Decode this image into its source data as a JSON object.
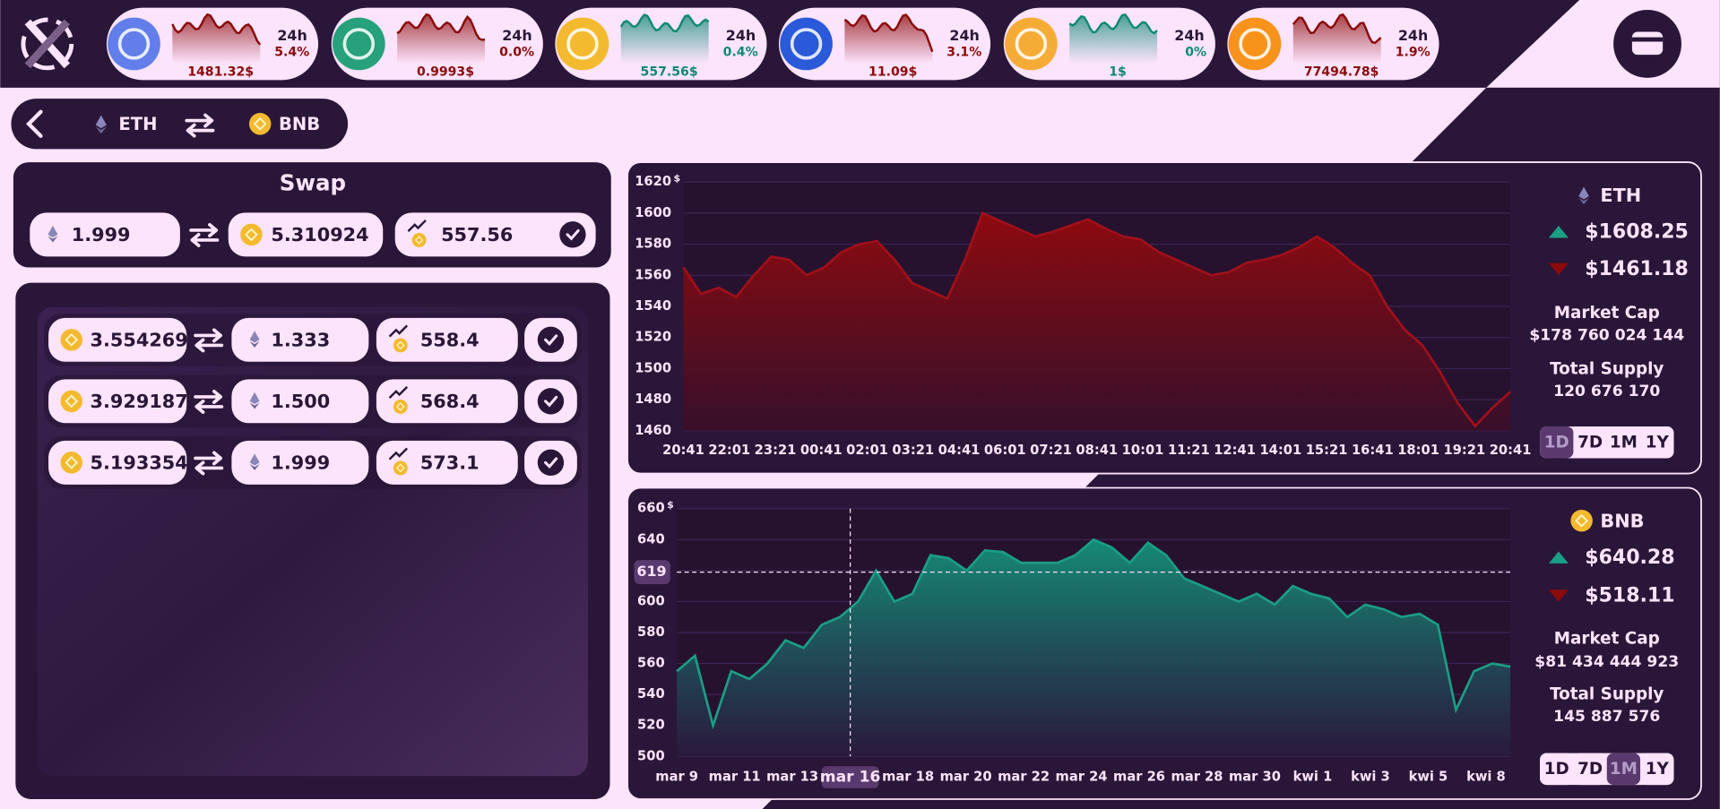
{
  "header": {
    "tickers": [
      {
        "period": "24h",
        "change": "5.4%",
        "price": "1481.32$",
        "color": "#8b0a0a",
        "icon_color": "#627eea"
      },
      {
        "period": "24h",
        "change": "0.0%",
        "price": "0.9993$",
        "color": "#8b0a0a",
        "icon_color": "#26a17b"
      },
      {
        "period": "24h",
        "change": "0.4%",
        "price": "557.56$",
        "color": "#0e8a72",
        "icon_color": "#f3ba2f"
      },
      {
        "period": "24h",
        "change": "3.1%",
        "price": "11.09$",
        "color": "#8b0a0a",
        "icon_color": "#2a5ada"
      },
      {
        "period": "24h",
        "change": "0%",
        "price": "1$",
        "color": "#0e8a72",
        "icon_color": "#f5ac37"
      },
      {
        "period": "24h",
        "change": "1.9%",
        "price": "77494.78$",
        "color": "#8b0a0a",
        "icon_color": "#f7931a"
      }
    ]
  },
  "pair_bar": {
    "from": "ETH",
    "to": "BNB"
  },
  "swap": {
    "title": "Swap",
    "from_amount": "1.999",
    "to_amount": "5.310924",
    "rate": "557.56"
  },
  "history": {
    "rows": [
      [
        "3.554269",
        "1.333",
        "558.4"
      ],
      [
        "3.929187",
        "1.500",
        "568.4"
      ],
      [
        "5.193354",
        "1.999",
        "573.1"
      ]
    ]
  },
  "charts": [
    {
      "type": "area",
      "coin": "ETH",
      "unit": "$",
      "color": "#a0101a",
      "ylim": [
        1460,
        1620
      ],
      "yticks": [
        1460,
        1480,
        1500,
        1520,
        1540,
        1560,
        1580,
        1600,
        1620
      ],
      "xlabels": [
        "20:41",
        "22:01",
        "23:21",
        "00:41",
        "02:01",
        "03:21",
        "04:41",
        "06:01",
        "07:21",
        "08:41",
        "10:01",
        "11:21",
        "12:41",
        "14:01",
        "15:21",
        "16:41",
        "18:01",
        "19:21",
        "20:41"
      ],
      "values": [
        1565,
        1548,
        1552,
        1546,
        1560,
        1572,
        1570,
        1560,
        1565,
        1575,
        1580,
        1582,
        1570,
        1555,
        1550,
        1545,
        1570,
        1600,
        1595,
        1590,
        1585,
        1588,
        1592,
        1596,
        1590,
        1585,
        1583,
        1575,
        1570,
        1565,
        1560,
        1562,
        1568,
        1570,
        1573,
        1578,
        1585,
        1578,
        1568,
        1560,
        1540,
        1525,
        1515,
        1498,
        1478,
        1463,
        1475,
        1485
      ],
      "high": "$1608.25",
      "low": "$1461.18",
      "market_cap_label": "Market Cap",
      "market_cap": "$178 760 024 144",
      "supply_label": "Total Supply",
      "supply": "120 676 170",
      "ranges": [
        "1D",
        "7D",
        "1M",
        "1Y"
      ],
      "selected_range": 0
    },
    {
      "type": "area",
      "coin": "BNB",
      "unit": "$",
      "color": "#1a9e86",
      "ylim": [
        500,
        660
      ],
      "yticks": [
        500,
        520,
        540,
        560,
        580,
        600,
        620,
        640,
        660
      ],
      "xlabels": [
        "mar 9",
        "mar 11",
        "mar 13",
        "mar 16",
        "mar 18",
        "mar 20",
        "mar 22",
        "mar 24",
        "mar 26",
        "mar 28",
        "mar 30",
        "kwi 1",
        "kwi 3",
        "kwi 5",
        "kwi 8"
      ],
      "values": [
        555,
        565,
        520,
        555,
        550,
        560,
        575,
        570,
        585,
        590,
        600,
        620,
        600,
        605,
        630,
        628,
        620,
        633,
        632,
        625,
        625,
        625,
        630,
        640,
        635,
        625,
        638,
        630,
        615,
        610,
        605,
        600,
        605,
        598,
        610,
        605,
        602,
        590,
        598,
        595,
        590,
        592,
        585,
        530,
        555,
        560,
        558
      ],
      "crosshair": {
        "value": 619,
        "x_index": 3
      },
      "high": "$640.28",
      "low": "$518.11",
      "market_cap_label": "Market Cap",
      "market_cap": "$81 434 444 923",
      "supply_label": "Total Supply",
      "supply": "145 887 576",
      "ranges": [
        "1D",
        "7D",
        "1M",
        "1Y"
      ],
      "selected_range": 2
    }
  ]
}
